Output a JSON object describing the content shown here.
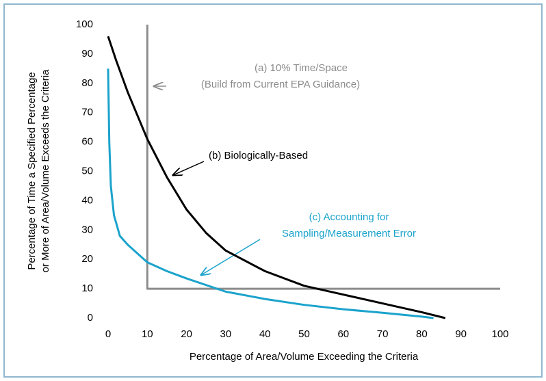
{
  "chart_data": {
    "type": "line",
    "xlabel": "Percentage of Area/Volume Exceeding the Criteria",
    "ylabel": [
      "Percentage of Time a Specified Percentage",
      "or More of Area/Volume Exceeds the Criteria"
    ],
    "xlim": [
      0,
      100
    ],
    "ylim": [
      0,
      100
    ],
    "xticks": [
      0,
      10,
      20,
      30,
      40,
      50,
      60,
      70,
      80,
      90,
      100
    ],
    "yticks": [
      0,
      10,
      20,
      30,
      40,
      50,
      60,
      70,
      80,
      90,
      100
    ],
    "series": [
      {
        "color": "#8c8c8c",
        "x": [
          10,
          10,
          100
        ],
        "values": [
          100,
          10,
          10
        ]
      },
      {
        "color": "#000000",
        "x": [
          0,
          2,
          5,
          10,
          15,
          20,
          25,
          30,
          40,
          50,
          60,
          70,
          80,
          86
        ],
        "values": [
          96,
          88,
          77,
          61,
          48,
          37,
          29,
          23,
          16,
          11,
          8,
          5,
          2,
          0
        ]
      },
      {
        "color": "#1ba3cc",
        "x": [
          0,
          0.3,
          0.7,
          1.5,
          3,
          5,
          10,
          15,
          20,
          30,
          40,
          50,
          60,
          70,
          80,
          83
        ],
        "values": [
          85,
          60,
          45,
          35,
          28,
          25,
          19,
          16,
          13.5,
          9,
          6.5,
          4.5,
          3,
          1.8,
          0.5,
          0
        ]
      }
    ],
    "annotations": [
      {
        "lines": [
          "(a) 10% Time/Space",
          "(Build from Current EPA Guidance)"
        ],
        "color": "#8c8c8c"
      },
      {
        "lines": [
          "(b) Biologically-Based"
        ],
        "color": "#000000"
      },
      {
        "lines": [
          "(c) Accounting for",
          "Sampling/Measurement Error"
        ],
        "color": "#1ba3cc"
      }
    ]
  }
}
